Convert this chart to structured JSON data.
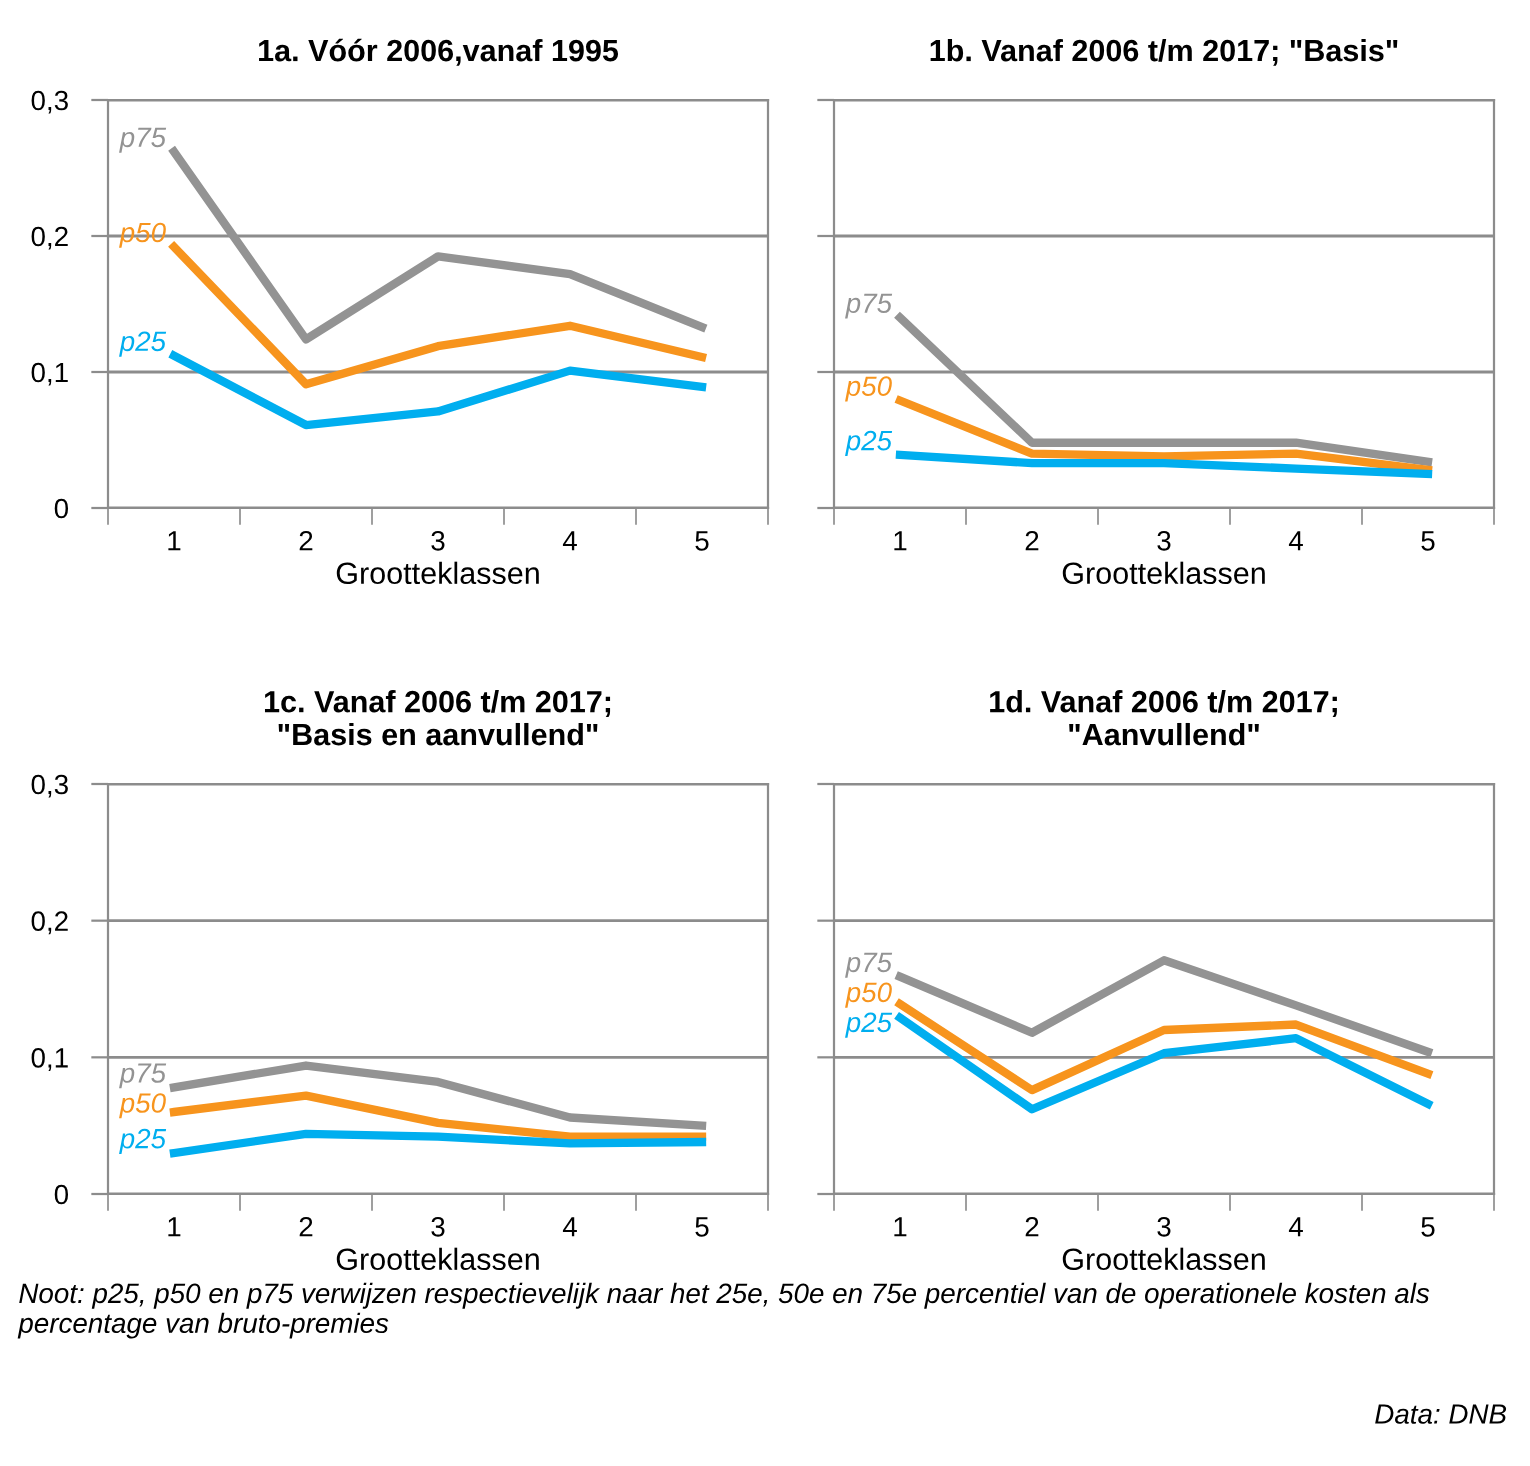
{
  "chart_data": [
    {
      "type": "line",
      "title": "1a. Vóór 2006,vanaf 1995",
      "xlabel": "Grootteklassen",
      "categories": [
        "1",
        "2",
        "3",
        "4",
        "5"
      ],
      "series": [
        {
          "name": "p75",
          "color": "#939393",
          "values": [
            0.262,
            0.124,
            0.185,
            0.172,
            0.133
          ]
        },
        {
          "name": "p50",
          "color": "#f7941d",
          "values": [
            0.192,
            0.091,
            0.119,
            0.134,
            0.111
          ]
        },
        {
          "name": "p25",
          "color": "#00aeef",
          "values": [
            0.112,
            0.061,
            0.071,
            0.101,
            0.089
          ]
        }
      ],
      "ylim": [
        0,
        0.3
      ],
      "yticks": [
        {
          "value": 0,
          "label": "0"
        },
        {
          "value": 0.1,
          "label": "0,1"
        },
        {
          "value": 0.2,
          "label": "0,2"
        },
        {
          "value": 0.3,
          "label": "0,3"
        }
      ],
      "grid": "y",
      "marker": "none",
      "line_style": "solid"
    },
    {
      "type": "line",
      "title": "1b. Vanaf 2006 t/m 2017; \"Basis\"",
      "xlabel": "Grootteklassen",
      "categories": [
        "1",
        "2",
        "3",
        "4",
        "5"
      ],
      "series": [
        {
          "name": "p75",
          "color": "#939393",
          "values": [
            0.14,
            0.048,
            0.048,
            0.048,
            0.034
          ]
        },
        {
          "name": "p50",
          "color": "#f7941d",
          "values": [
            0.079,
            0.04,
            0.038,
            0.04,
            0.028
          ]
        },
        {
          "name": "p25",
          "color": "#00aeef",
          "values": [
            0.039,
            0.033,
            0.033,
            0.029,
            0.025
          ]
        }
      ],
      "ylim": [
        0,
        0.3
      ],
      "yticks": [
        {
          "value": 0,
          "label": null
        },
        {
          "value": 0.1,
          "label": null
        },
        {
          "value": 0.2,
          "label": null
        },
        {
          "value": 0.3,
          "label": null
        }
      ],
      "tick_labels": "x",
      "grid": "y",
      "marker": "none",
      "line_style": "solid"
    },
    {
      "type": "line",
      "title": "1c. Vanaf 2006 t/m 2017;\n\"Basis en aanvullend\"",
      "xlabel": "Grootteklassen",
      "categories": [
        "1",
        "2",
        "3",
        "4",
        "5"
      ],
      "series": [
        {
          "name": "p75",
          "color": "#939393",
          "values": [
            0.078,
            0.094,
            0.082,
            0.056,
            0.05
          ]
        },
        {
          "name": "p50",
          "color": "#f7941d",
          "values": [
            0.06,
            0.072,
            0.052,
            0.042,
            0.042
          ]
        },
        {
          "name": "p25",
          "color": "#00aeef",
          "values": [
            0.03,
            0.044,
            0.042,
            0.037,
            0.038
          ]
        }
      ],
      "ylim": [
        0,
        0.3
      ],
      "yticks": [
        {
          "value": 0,
          "label": "0"
        },
        {
          "value": 0.1,
          "label": "0,1"
        },
        {
          "value": 0.2,
          "label": "0,2"
        },
        {
          "value": 0.3,
          "label": "0,3"
        }
      ],
      "grid": "y",
      "marker": "none",
      "line_style": "solid"
    },
    {
      "type": "line",
      "title": "1d. Vanaf 2006 t/m 2017;\n\"Aanvullend\"",
      "xlabel": "Grootteklassen",
      "categories": [
        "1",
        "2",
        "3",
        "4",
        "5"
      ],
      "series": [
        {
          "name": "p75",
          "color": "#939393",
          "values": [
            0.159,
            0.118,
            0.171,
            0.138,
            0.104
          ]
        },
        {
          "name": "p50",
          "color": "#f7941d",
          "values": [
            0.139,
            0.076,
            0.12,
            0.124,
            0.088
          ]
        },
        {
          "name": "p25",
          "color": "#00aeef",
          "values": [
            0.129,
            0.062,
            0.103,
            0.114,
            0.066
          ]
        }
      ],
      "ylim": [
        0,
        0.3
      ],
      "yticks": [
        {
          "value": 0,
          "label": null
        },
        {
          "value": 0.1,
          "label": null
        },
        {
          "value": 0.2,
          "label": null
        },
        {
          "value": 0.3,
          "label": null
        }
      ],
      "tick_labels": "x",
      "grid": "y",
      "marker": "none",
      "line_style": "solid",
      "annotations": [
        "Noot: p25, p50 en p75 verwijzen respectievelijk naar het 25e, 50e en 75e percentiel van de operationele kosten als percentage van bruto-premies",
        "Data: DNB"
      ]
    }
  ]
}
